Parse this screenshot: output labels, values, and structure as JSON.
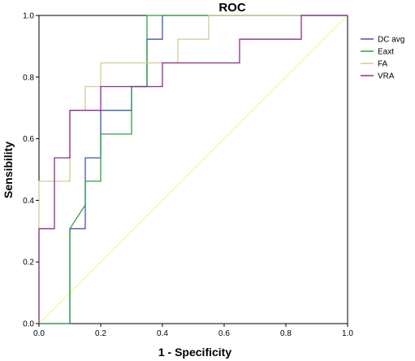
{
  "chart_data": {
    "type": "line",
    "title": "ROC",
    "xlabel": "1 - Specificity",
    "ylabel": "Sensibility",
    "xlim": [
      0,
      1
    ],
    "ylim": [
      0,
      1
    ],
    "xticks": [
      "0.0",
      "0.2",
      "0.4",
      "0.6",
      "0.8",
      "1.0"
    ],
    "yticks": [
      "0.0",
      "0.2",
      "0.4",
      "0.6",
      "0.8",
      "1.0"
    ],
    "grid": false,
    "legend_position": "right",
    "reference_line": {
      "x": [
        0,
        1
      ],
      "y": [
        0,
        1
      ],
      "color": "#f2f28c"
    },
    "series": [
      {
        "name": "DC avg",
        "color": "#3e56b0",
        "x": [
          0,
          0.1,
          0.1,
          0.15,
          0.15,
          0.2,
          0.2,
          0.3,
          0.3,
          0.35,
          0.35,
          0.4,
          0.4,
          1.0
        ],
        "y": [
          0,
          0,
          0.308,
          0.308,
          0.538,
          0.538,
          0.692,
          0.692,
          0.769,
          0.769,
          0.923,
          0.923,
          1.0,
          1.0
        ]
      },
      {
        "name": "Eaxt",
        "color": "#2f9e44",
        "x": [
          0,
          0.1,
          0.1,
          0.15,
          0.15,
          0.2,
          0.2,
          0.3,
          0.3,
          0.35,
          0.35,
          1.0
        ],
        "y": [
          0,
          0,
          0.308,
          0.385,
          0.462,
          0.462,
          0.615,
          0.615,
          0.769,
          0.769,
          1.0,
          1.0
        ]
      },
      {
        "name": "FA",
        "color": "#d6cc96",
        "x": [
          0,
          0,
          0.1,
          0.1,
          0.15,
          0.15,
          0.2,
          0.2,
          0.45,
          0.45,
          0.55,
          0.55,
          1.0
        ],
        "y": [
          0,
          0.462,
          0.462,
          0.692,
          0.692,
          0.769,
          0.769,
          0.846,
          0.846,
          0.923,
          0.923,
          1.0,
          1.0
        ]
      },
      {
        "name": "VRA",
        "color": "#8a2e8a",
        "x": [
          0,
          0,
          0.05,
          0.05,
          0.1,
          0.1,
          0.2,
          0.2,
          0.3,
          0.3,
          0.4,
          0.4,
          0.65,
          0.65,
          0.85,
          0.85,
          1.0
        ],
        "y": [
          0,
          0.308,
          0.308,
          0.538,
          0.538,
          0.692,
          0.692,
          0.769,
          0.769,
          0.769,
          0.769,
          0.846,
          0.846,
          0.923,
          0.923,
          1.0,
          1.0
        ]
      }
    ]
  }
}
